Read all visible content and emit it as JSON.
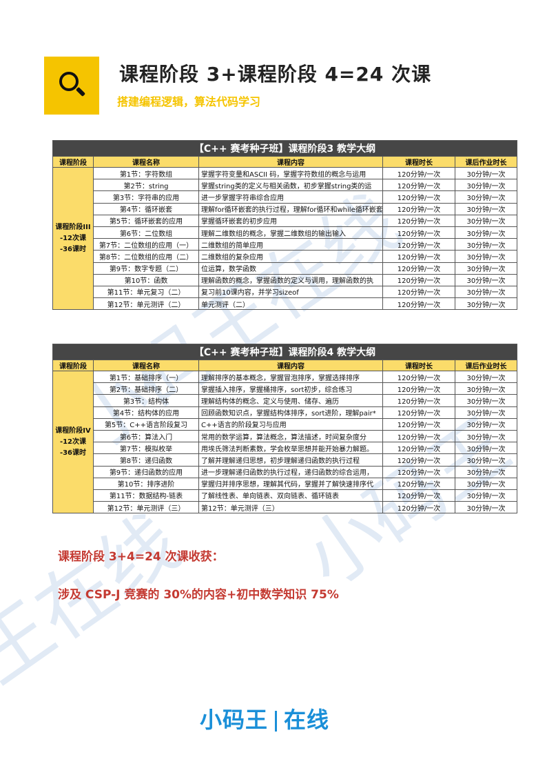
{
  "header": {
    "title": "课程阶段 3+课程阶段 4=24 次课",
    "subtitle": "搭建编程逻辑，算法代码学习"
  },
  "columns": [
    "课程阶段",
    "课程名称",
    "课程内容",
    "课程时长",
    "课后作业时长"
  ],
  "tables": [
    {
      "caption": "【C++ 赛考种子班】课程阶段3 教学大纲",
      "stage": "课程阶段III\n-12次课\n-36课时",
      "rows": [
        [
          "第1节：字符数组",
          "掌握字符变量和ASCII 码，掌握字符数组的概念与运用",
          "120分钟/一次",
          "30分钟/一次"
        ],
        [
          "第2节：string",
          "掌握string类的定义与相关函数，初步掌握string类的运",
          "120分钟/一次",
          "30分钟/一次"
        ],
        [
          "第3节：字符串的应用",
          "进一步掌握字符串综合应用",
          "120分钟/一次",
          "30分钟/一次"
        ],
        [
          "第4节：循环嵌套",
          "理解for循环嵌套的执行过程，理解for循环和while循环嵌套",
          "120分钟/一次",
          "30分钟/一次"
        ],
        [
          "第5节：循环嵌套的应用",
          "掌握循环嵌套的初步应用",
          "120分钟/一次",
          "30分钟/一次"
        ],
        [
          "第6节：二位数组",
          "理解二维数组的概念，掌握二维数组的输出输入",
          "120分钟/一次",
          "30分钟/一次"
        ],
        [
          "第7节：二位数组的应用（一）",
          "二维数组的简单应用",
          "120分钟/一次",
          "30分钟/一次"
        ],
        [
          "第8节：二位数组的应用（二）",
          "二维数组的复杂应用",
          "120分钟/一次",
          "30分钟/一次"
        ],
        [
          "第9节：数字专题（二）",
          "位运算，数学函数",
          "120分钟/一次",
          "30分钟/一次"
        ],
        [
          "第10节：函数",
          "理解函数的概念，掌握函数的定义与调用，理解函数的执",
          "120分钟/一次",
          "30分钟/一次"
        ],
        [
          "第11节：单元复习（二）",
          "复习前10课内容，并学习sizeof",
          "120分钟/一次",
          "30分钟/一次"
        ],
        [
          "第12节：单元测评（二）",
          "单元测评（二）",
          "120分钟/一次",
          "30分钟/一次"
        ]
      ]
    },
    {
      "caption": "【C++ 赛考种子班】课程阶段4 教学大纲",
      "stage": "课程阶段IV\n-12次课\n-36课时",
      "rows": [
        [
          "第1节：基础排序（一）",
          "理解排序的基本概念，掌握冒泡排序，掌握选择排序",
          "120分钟/一次",
          "30分钟/一次"
        ],
        [
          "第2节：基础排序（二）",
          "掌握插入排序，掌握桶排序，sort初步，综合练习",
          "120分钟/一次",
          "30分钟/一次"
        ],
        [
          "第3节：结构体",
          "理解结构体的概念、定义与使用、储存、遍历",
          "120分钟/一次",
          "30分钟/一次"
        ],
        [
          "第4节：结构体的应用",
          "回顾函数知识点，掌握结构体排序，sort进阶，理解pair*",
          "120分钟/一次",
          "30分钟/一次"
        ],
        [
          "第5节：C++语言阶段复习",
          "C++语言的阶段复习与应用",
          "120分钟/一次",
          "30分钟/一次"
        ],
        [
          "第6节：算法入门",
          "常用的数学运算，算法概念，算法描述，时间复杂度分",
          "120分钟/一次",
          "30分钟/一次"
        ],
        [
          "第7节：模拟枚举",
          "用埃氏筛法判断素数，学会枚举思想并能开始暴力解题。",
          "120分钟/一次",
          "30分钟/一次"
        ],
        [
          "第8节：递归函数",
          "了解并理解递归思想，初步理解递归函数的执行过程",
          "120分钟/一次",
          "30分钟/一次"
        ],
        [
          "第9节：递归函数的应用",
          "进一步理解递归函数的执行过程，递归函数的综合运用，",
          "120分钟/一次",
          "30分钟/一次"
        ],
        [
          "第10节：排序进阶",
          "掌握归并排序思想，理解其代码，掌握并了解快速排序代",
          "120分钟/一次",
          "30分钟/一次"
        ],
        [
          "第11节：数据结构-链表",
          "了解线性表、单向链表、双向链表、循环链表",
          "120分钟/一次",
          "30分钟/一次"
        ],
        [
          "第12节：单元测评（三）",
          "第12节：单元测评（三）",
          "120分钟/一次",
          "30分钟/一次"
        ]
      ]
    }
  ],
  "summary": {
    "heading": "课程阶段 3+4=24 次课收获：",
    "detail": "涉及 CSP-J 竞赛的 30%的内容+初中数学知识 75%"
  },
  "logo": {
    "brand": "小码王",
    "suffix": "在线"
  },
  "colors": {
    "accent": "#f5c400",
    "header_bar": "#464646",
    "summary": "#c43a32",
    "logo": "#1a8fd8"
  }
}
